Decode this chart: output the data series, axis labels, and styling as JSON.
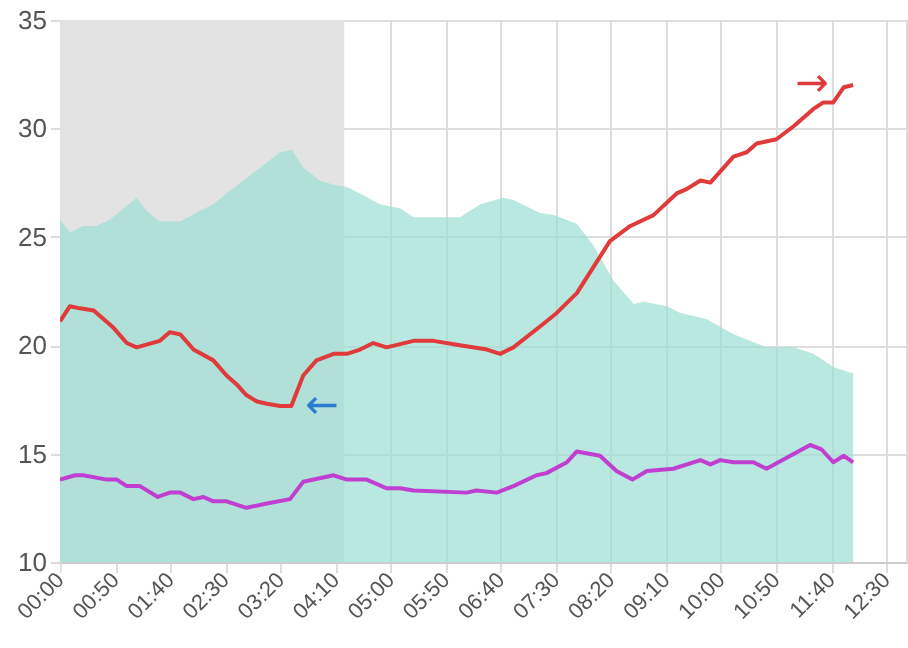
{
  "chart_data": {
    "type": "line",
    "xlim": [
      0,
      12.8
    ],
    "ylim": [
      10,
      35
    ],
    "xticks": [
      {
        "value": 0,
        "label": "00:00"
      },
      {
        "value": 0.8333,
        "label": "00:50"
      },
      {
        "value": 1.6667,
        "label": "01:40"
      },
      {
        "value": 2.5,
        "label": "02:30"
      },
      {
        "value": 3.3333,
        "label": "03:20"
      },
      {
        "value": 4.1667,
        "label": "04:10"
      },
      {
        "value": 5,
        "label": "05:00"
      },
      {
        "value": 5.8333,
        "label": "05:50"
      },
      {
        "value": 6.6667,
        "label": "06:40"
      },
      {
        "value": 7.5,
        "label": "07:30"
      },
      {
        "value": 8.3333,
        "label": "08:20"
      },
      {
        "value": 9.1667,
        "label": "09:10"
      },
      {
        "value": 10,
        "label": "10:00"
      },
      {
        "value": 10.8333,
        "label": "10:50"
      },
      {
        "value": 11.6667,
        "label": "11:40"
      },
      {
        "value": 12.5,
        "label": "12:30"
      }
    ],
    "yticks": [
      10,
      15,
      20,
      25,
      30,
      35
    ],
    "grid": true,
    "marker": "none",
    "line_style": "solid",
    "bands": [
      {
        "axis": "x",
        "from": 0,
        "to": 4.3,
        "color": "#e3e3e3"
      }
    ],
    "annotations": [
      "←",
      "→"
    ],
    "series": [
      {
        "type": "area",
        "color": "#b9e8e0",
        "x": [
          0,
          0.15,
          0.35,
          0.55,
          0.76,
          0.96,
          1.16,
          1.31,
          1.51,
          1.82,
          2.12,
          2.32,
          2.52,
          2.82,
          3.03,
          3.33,
          3.51,
          3.68,
          3.93,
          4.14,
          4.34,
          4.54,
          4.84,
          5.15,
          5.35,
          6.05,
          6.36,
          6.71,
          6.86,
          7.26,
          7.47,
          7.82,
          8.07,
          8.37,
          8.68,
          8.83,
          9.18,
          9.38,
          9.79,
          10.19,
          10.69,
          11.1,
          11.4,
          11.7,
          12.0
        ],
        "values": [
          25.8,
          25.2,
          25.5,
          25.5,
          25.8,
          26.3,
          26.8,
          26.2,
          25.7,
          25.7,
          26.2,
          26.5,
          27.0,
          27.7,
          28.2,
          28.9,
          29.0,
          28.2,
          27.6,
          27.4,
          27.3,
          27.0,
          26.5,
          26.3,
          25.9,
          25.9,
          26.5,
          26.8,
          26.7,
          26.1,
          26.0,
          25.6,
          24.6,
          23.0,
          21.9,
          22.0,
          21.8,
          21.5,
          21.2,
          20.5,
          19.9,
          19.9,
          19.6,
          19.0,
          18.7
        ]
      },
      {
        "color": "#e03a3a",
        "x": [
          0,
          0.15,
          0.3,
          0.51,
          0.81,
          1.01,
          1.16,
          1.51,
          1.66,
          1.82,
          2.02,
          2.32,
          2.52,
          2.67,
          2.82,
          2.98,
          3.13,
          3.33,
          3.5,
          3.68,
          3.88,
          4.14,
          4.34,
          4.54,
          4.74,
          4.94,
          5.35,
          5.65,
          6.05,
          6.46,
          6.66,
          6.86,
          7.32,
          7.52,
          7.82,
          8.07,
          8.32,
          8.63,
          8.98,
          9.33,
          9.48,
          9.69,
          9.84,
          10.19,
          10.39,
          10.54,
          10.84,
          11.1,
          11.4,
          11.55,
          11.7,
          11.86,
          12.0
        ],
        "values": [
          21.1,
          21.8,
          21.7,
          21.6,
          20.8,
          20.1,
          19.9,
          20.2,
          20.6,
          20.5,
          19.8,
          19.3,
          18.6,
          18.2,
          17.7,
          17.4,
          17.3,
          17.2,
          17.2,
          18.6,
          19.3,
          19.6,
          19.6,
          19.8,
          20.1,
          19.9,
          20.2,
          20.2,
          20.0,
          19.8,
          19.6,
          19.9,
          21.0,
          21.5,
          22.4,
          23.6,
          24.8,
          25.5,
          26.0,
          27.0,
          27.2,
          27.6,
          27.5,
          28.7,
          28.9,
          29.3,
          29.5,
          30.1,
          30.9,
          31.2,
          31.2,
          31.9,
          32.0
        ]
      },
      {
        "color": "#c03fd0",
        "x": [
          0,
          0.23,
          0.35,
          0.71,
          0.86,
          1.01,
          1.21,
          1.48,
          1.66,
          1.82,
          2.02,
          2.17,
          2.32,
          2.52,
          2.82,
          3.13,
          3.48,
          3.68,
          4.14,
          4.34,
          4.64,
          4.94,
          5.15,
          5.35,
          6.15,
          6.3,
          6.61,
          6.86,
          7.21,
          7.36,
          7.67,
          7.82,
          8.17,
          8.42,
          8.66,
          8.88,
          9.28,
          9.69,
          9.84,
          9.99,
          10.19,
          10.49,
          10.69,
          11.05,
          11.35,
          11.52,
          11.7,
          11.86,
          12.0
        ],
        "values": [
          13.8,
          14.0,
          14.0,
          13.8,
          13.8,
          13.5,
          13.5,
          13.0,
          13.2,
          13.2,
          12.9,
          13.0,
          12.8,
          12.8,
          12.5,
          12.7,
          12.9,
          13.7,
          14.0,
          13.8,
          13.8,
          13.4,
          13.4,
          13.3,
          13.2,
          13.3,
          13.2,
          13.5,
          14.0,
          14.1,
          14.6,
          15.1,
          14.9,
          14.2,
          13.8,
          14.2,
          14.3,
          14.7,
          14.5,
          14.7,
          14.6,
          14.6,
          14.3,
          14.9,
          15.4,
          15.2,
          14.6,
          14.9,
          14.6
        ]
      }
    ]
  }
}
